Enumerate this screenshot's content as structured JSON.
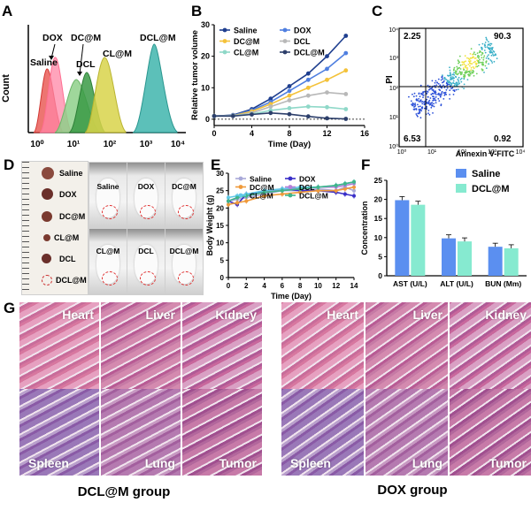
{
  "panel_labels": [
    "A",
    "B",
    "C",
    "D",
    "E",
    "F",
    "G"
  ],
  "colors": {
    "saline": "#e8524d",
    "dox": "#ff86a5",
    "dcm": "#1f2f6b",
    "dcl": "#3a9a45",
    "clm": "#c7c22a",
    "dclm": "#2fa7a0",
    "histo_pink": "#d77aa6",
    "histo_dark": "#7a3f8f",
    "bar_saline": "#5b8ff0",
    "bar_dclm": "#86ead0"
  },
  "panel_a": {
    "ylabel": "Count",
    "xticks": [
      "10⁰",
      "10¹",
      "10²",
      "10³",
      "10⁴"
    ],
    "labels": {
      "dox": "DOX",
      "dcm": "DC@M",
      "saline": "Saline",
      "dcl": "DCL",
      "clm": "CL@M",
      "dclm": "DCL@M"
    }
  },
  "panel_c": {
    "ylabel": "PI",
    "xlabel": "Annexin V-FITC",
    "quadrants": {
      "ul": "2.25",
      "ur": "90.3",
      "ll": "6.53",
      "lr": "0.92"
    },
    "yticks": [
      "10⁰",
      "10¹",
      "10²",
      "10³",
      "10⁴"
    ],
    "xticks": [
      "10⁰",
      "10¹",
      "10²",
      "10³",
      "10⁴"
    ]
  },
  "panel_d": {
    "tumor_labels": [
      "Saline",
      "DOX",
      "DC@M",
      "CL@M",
      "DCL",
      "DCL@M"
    ],
    "mouse_labels": [
      "Saline",
      "DOX",
      "DC@M",
      "CL@M",
      "DCL",
      "DCL@M"
    ]
  },
  "panel_g": {
    "tiles": [
      "Heart",
      "Liver",
      "Kidney",
      "Spleen",
      "Lung",
      "Tumor"
    ],
    "group_left": "DCL@M group",
    "group_right": "DOX group"
  },
  "chart_data": [
    {
      "panel": "B",
      "type": "line",
      "xlabel": "Time (Day)",
      "ylabel": "Relative tumor volume",
      "xlim": [
        0,
        16
      ],
      "ylim": [
        -2,
        30
      ],
      "xticks": [
        0,
        4,
        8,
        12,
        16
      ],
      "yticks": [
        0,
        10,
        20,
        30
      ],
      "x": [
        0,
        2,
        4,
        6,
        8,
        10,
        12,
        14
      ],
      "series": [
        {
          "name": "Saline",
          "color": "#1f3f8f",
          "values": [
            1,
            1.3,
            3.2,
            6.5,
            10.5,
            14.5,
            20,
            26.5
          ]
        },
        {
          "name": "DOX",
          "color": "#4f7fe0",
          "values": [
            1,
            1.2,
            2.8,
            5.5,
            9,
            12.5,
            16,
            21
          ]
        },
        {
          "name": "DC@M",
          "color": "#f4c23a",
          "values": [
            1,
            1.1,
            2.5,
            4.8,
            7.5,
            10,
            12.5,
            15.5
          ]
        },
        {
          "name": "DCL",
          "color": "#b8b8b8",
          "values": [
            1,
            1.1,
            2,
            4,
            6,
            7.5,
            8.5,
            8
          ]
        },
        {
          "name": "CL@M",
          "color": "#8fd8c8",
          "values": [
            1,
            1.05,
            1.6,
            2.8,
            3.5,
            4,
            3.8,
            3.2
          ]
        },
        {
          "name": "DCL@M",
          "color": "#2d3f6b",
          "values": [
            1,
            1,
            1.5,
            2,
            1.6,
            0.9,
            0.3,
            0.1
          ]
        }
      ]
    },
    {
      "panel": "E",
      "type": "line",
      "xlabel": "Time (Day)",
      "ylabel": "Body Weight (g)",
      "xlim": [
        0,
        14
      ],
      "ylim": [
        0,
        30
      ],
      "xticks": [
        0,
        2,
        4,
        6,
        8,
        10,
        12,
        14
      ],
      "yticks": [
        0,
        5,
        10,
        15,
        20,
        25,
        30
      ],
      "x": [
        0,
        1,
        2,
        4,
        6,
        8,
        10,
        12,
        13,
        14
      ],
      "series": [
        {
          "name": "Saline",
          "color": "#a9a9d8",
          "values": [
            22,
            22.5,
            23,
            24,
            25,
            25,
            25.5,
            25,
            26,
            25
          ]
        },
        {
          "name": "DOX",
          "color": "#3a2fc8",
          "values": [
            22,
            21,
            24,
            24.5,
            25.5,
            25,
            25,
            24.5,
            24,
            23.5
          ]
        },
        {
          "name": "DC@M",
          "color": "#f09a3a",
          "values": [
            21,
            21.5,
            22,
            23.5,
            24,
            24.5,
            25,
            25,
            25.5,
            26
          ]
        },
        {
          "name": "DCL",
          "color": "#b57fd8",
          "values": [
            22,
            23,
            23.5,
            24.5,
            25.5,
            25.5,
            26,
            26,
            26.5,
            27
          ]
        },
        {
          "name": "CL@M",
          "color": "#5fc8e8",
          "values": [
            23,
            23.5,
            24,
            25,
            25.5,
            26,
            26,
            26.5,
            27,
            27.5
          ]
        },
        {
          "name": "DCL@M",
          "color": "#3fb58a",
          "values": [
            22,
            23,
            23.5,
            24.5,
            25,
            25.5,
            26,
            26.5,
            27,
            27.5
          ]
        }
      ]
    },
    {
      "panel": "F",
      "type": "bar",
      "ylabel": "Concentration",
      "ylim": [
        0,
        25
      ],
      "yticks": [
        0,
        5,
        10,
        15,
        20,
        25
      ],
      "categories": [
        "AST (U/L)",
        "ALT (U/L)",
        "BUN (Mm)"
      ],
      "series": [
        {
          "name": "Saline",
          "color": "#5b8ff0",
          "values": [
            19.8,
            9.8,
            7.6
          ]
        },
        {
          "name": "DCL@M",
          "color": "#86ead0",
          "values": [
            18.6,
            9.0,
            7.2
          ]
        }
      ]
    }
  ]
}
